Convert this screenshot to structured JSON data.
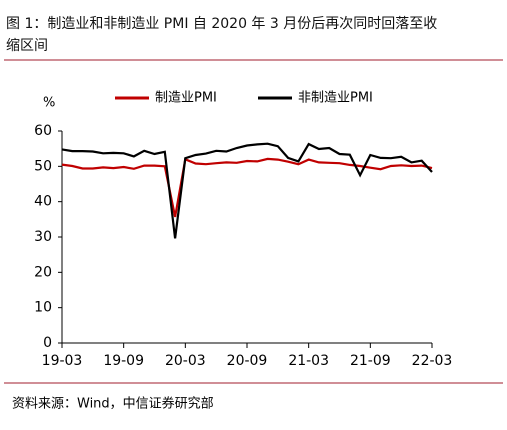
{
  "chart_data": {
    "type": "line",
    "title": [
      "图 1：制造业和非制造业 PMI 自 2020 年 3 月份后再次同时回落至收",
      "缩区间"
    ],
    "y_unit": "%",
    "source": "资料来源：Wind，中信证券研究部",
    "categories": [
      "19-03",
      null,
      null,
      null,
      null,
      null,
      "19-09",
      null,
      null,
      null,
      null,
      null,
      "20-03",
      null,
      null,
      null,
      null,
      null,
      "20-09",
      null,
      null,
      null,
      null,
      null,
      "21-03",
      null,
      null,
      null,
      null,
      null,
      "21-09",
      null,
      null,
      null,
      null,
      null,
      "22-03"
    ],
    "series": [
      {
        "name": "制造业PMI",
        "color": "#c00000",
        "values": [
          50.5,
          50.1,
          49.4,
          49.4,
          49.7,
          49.5,
          49.8,
          49.3,
          50.2,
          50.2,
          50.0,
          35.7,
          52.0,
          50.8,
          50.6,
          50.9,
          51.1,
          51.0,
          51.5,
          51.4,
          52.1,
          51.9,
          51.3,
          50.6,
          51.9,
          51.1,
          51.0,
          50.9,
          50.4,
          50.1,
          49.6,
          49.2,
          50.1,
          50.3,
          50.1,
          50.2,
          49.5
        ]
      },
      {
        "name": "非制造业PMI",
        "color": "#000000",
        "values": [
          54.8,
          54.3,
          54.3,
          54.2,
          53.7,
          53.8,
          53.7,
          52.8,
          54.4,
          53.5,
          54.1,
          29.6,
          52.3,
          53.2,
          53.6,
          54.4,
          54.2,
          55.2,
          55.9,
          56.2,
          56.4,
          55.7,
          52.4,
          51.4,
          56.3,
          54.9,
          55.2,
          53.5,
          53.3,
          47.5,
          53.2,
          52.4,
          52.3,
          52.7,
          51.1,
          51.6,
          48.4
        ]
      }
    ],
    "ylim": [
      0,
      60
    ],
    "yticks": [
      0,
      10,
      20,
      30,
      40,
      50,
      60
    ],
    "legend": "top"
  }
}
